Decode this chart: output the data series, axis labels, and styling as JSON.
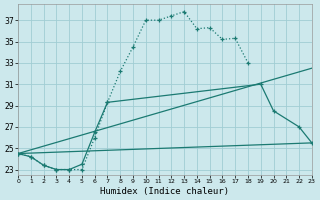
{
  "xlabel": "Humidex (Indice chaleur)",
  "xlim": [
    0,
    23
  ],
  "ylim": [
    22.5,
    38.5
  ],
  "yticks": [
    23,
    25,
    27,
    29,
    31,
    33,
    35,
    37
  ],
  "xticks": [
    0,
    1,
    2,
    3,
    4,
    5,
    6,
    7,
    8,
    9,
    10,
    11,
    12,
    13,
    14,
    15,
    16,
    17,
    18,
    19,
    20,
    21,
    22,
    23
  ],
  "bg_color": "#cce8ec",
  "grid_color": "#a0cdd4",
  "line_color": "#1b7a72",
  "line1_x": [
    0,
    1,
    2,
    3,
    4,
    5,
    6,
    7,
    8,
    9,
    10,
    11,
    12,
    13,
    14,
    15,
    16,
    17,
    18
  ],
  "line1_y": [
    24.5,
    24.2,
    23.4,
    23.0,
    23.0,
    23.0,
    26.0,
    29.3,
    32.2,
    34.5,
    37.0,
    37.0,
    37.4,
    37.8,
    36.2,
    36.3,
    35.2,
    35.3,
    33.0
  ],
  "line2_x": [
    0,
    1,
    2,
    3,
    4,
    5,
    6,
    7,
    19,
    20,
    22,
    23
  ],
  "line2_y": [
    24.5,
    24.2,
    23.4,
    23.0,
    23.0,
    23.5,
    26.5,
    29.3,
    31.0,
    28.5,
    27.0,
    25.5
  ],
  "line3_x": [
    0,
    23
  ],
  "line3_y": [
    24.5,
    32.5
  ],
  "line4_x": [
    0,
    23
  ],
  "line4_y": [
    24.5,
    25.5
  ]
}
